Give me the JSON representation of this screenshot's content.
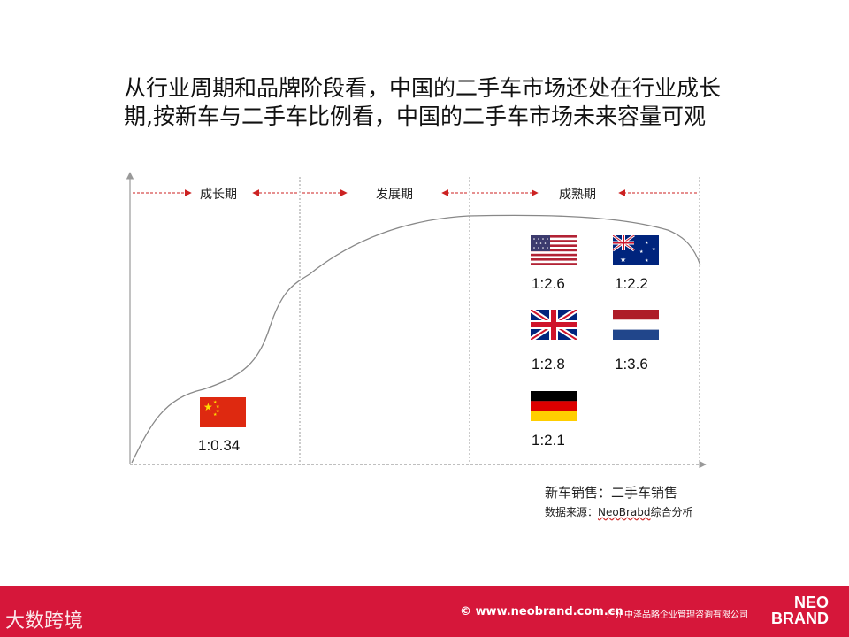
{
  "title": {
    "line1": "从行业周期和品牌阶段看，中国的二手车市场还处在行业成长",
    "line2": "期,按新车与二手车比例看，中国的二手车市场未来容量可观"
  },
  "stages": [
    "成长期",
    "发展期",
    "成熟期"
  ],
  "countries": [
    {
      "flag": "china-flag-icon",
      "ratio": "1:0.34"
    },
    {
      "flag": "usa-flag-icon",
      "ratio": "1:2.6"
    },
    {
      "flag": "australia-flag-icon",
      "ratio": "1:2.2"
    },
    {
      "flag": "uk-flag-icon",
      "ratio": "1:2.8"
    },
    {
      "flag": "netherlands-flag-icon",
      "ratio": "1:3.6"
    },
    {
      "flag": "germany-flag-icon",
      "ratio": "1:2.1"
    }
  ],
  "legend": "新车销售：二手车销售",
  "source": {
    "prefix": "数据来源：",
    "name": "NeoBrabd",
    "suffix": "综合分析"
  },
  "footer": {
    "left_logo": "大数跨境",
    "website": "© www.neobrand.com.cn",
    "company": "广州中泽品略企业管理咨询有限公司",
    "brand_line1": "NEO",
    "brand_line2": "BRAND"
  },
  "colors": {
    "arrow_red": "#cc2222",
    "footer_red": "#d6173a"
  }
}
